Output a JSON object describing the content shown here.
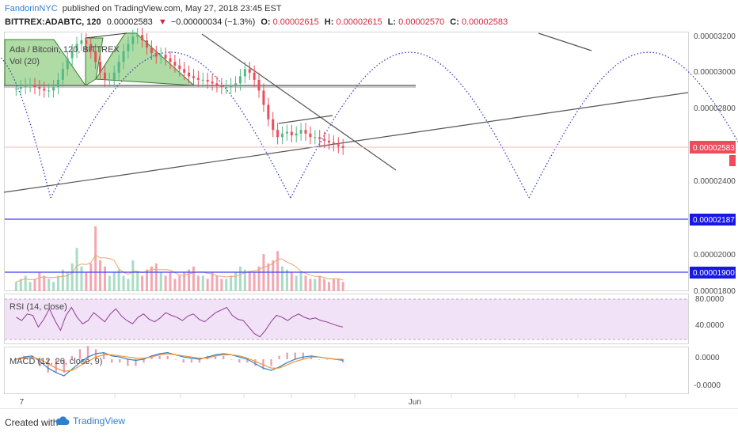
{
  "header": {
    "author": "FandorinNYC",
    "published": "published on TradingView.com, May 27, 2018 23:45 EST",
    "symbol": "BITTREX:ADABTC, 120",
    "last": "0.00002583",
    "change": "−0.00000034 (−1.3%)",
    "o_label": "O:",
    "o_val": "0.00002615",
    "h_label": "H:",
    "h_val": "0.00002615",
    "l_label": "L:",
    "l_val": "0.00002570",
    "c_label": "C:",
    "c_val": "0.00002583"
  },
  "legend": {
    "series": "Ada / Bitcoin, 120, BITTREX",
    "volume": "Vol (20)",
    "rsi": "RSI (14, close)",
    "macd": "MACD (12, 26, close, 9)"
  },
  "price_axis": {
    "ticks": [
      "0.00003200",
      "0.00003000",
      "0.00002800",
      "0.00002400",
      "0.00002000",
      "0.00001800"
    ],
    "tick_values": [
      3.2e-05,
      3e-05,
      2.8e-05,
      2.4e-05,
      2e-05,
      1.8e-05
    ],
    "last_price": "0.00002583",
    "level_1": "0.00002187",
    "level_2": "0.00001900"
  },
  "rsi_axis": {
    "ticks": [
      "80.0000",
      "40.0000"
    ],
    "tick_values": [
      80,
      40
    ]
  },
  "macd_axis": {
    "ticks": [
      "0.0000",
      "-0.0000"
    ]
  },
  "time_axis": {
    "ticks": [
      "7",
      "Jun"
    ]
  },
  "footer": {
    "created": "Created with",
    "brand": "TradingView"
  },
  "colors": {
    "up": "#53b987",
    "down": "#eb4d5c",
    "fill_green": "#6dbd5b",
    "blue_line": "#3e3ef0",
    "dots": "#3a3fc9",
    "rsi": "#8e3d91",
    "rsi_band": "#f1e2f8",
    "macd": "#2f83c8",
    "signal": "#f39235",
    "hist": "#e9a0b0",
    "accent": "#2f7fd1"
  },
  "chart_data": {
    "type": "candlestick",
    "title": "",
    "y_scale": "linear",
    "ylim": [
      1.78e-05,
      3.22e-05
    ],
    "x_range": [
      0,
      120
    ],
    "x_ticks": {
      "7": 3,
      "Jun": 72
    },
    "ohlc_close": [
      2.91e-05,
      2.92e-05,
      2.93e-05,
      2.93e-05,
      2.92e-05,
      2.91e-05,
      2.9e-05,
      2.9e-05,
      2.92e-05,
      2.96e-05,
      3.02e-05,
      3.08e-05,
      3.12e-05,
      3.16e-05,
      3.18e-05,
      3.16e-05,
      3.12e-05,
      3.06e-05,
      3e-05,
      2.96e-05,
      2.96e-05,
      3e-05,
      3.06e-05,
      3.12e-05,
      3.16e-05,
      3.2e-05,
      3.21e-05,
      3.18e-05,
      3.14e-05,
      3.11e-05,
      3.09e-05,
      3.1e-05,
      3.08e-05,
      3.06e-05,
      3.04e-05,
      3.02e-05,
      3e-05,
      2.98e-05,
      2.97e-05,
      2.96e-05,
      2.96e-05,
      2.95e-05,
      2.94e-05,
      2.93e-05,
      2.92e-05,
      2.92e-05,
      2.93e-05,
      2.94e-05,
      2.98e-05,
      3.02e-05,
      3e-05,
      2.96e-05,
      2.9e-05,
      2.82e-05,
      2.74e-05,
      2.68e-05,
      2.64e-05,
      2.66e-05,
      2.67e-05,
      2.65e-05,
      2.66e-05,
      2.68e-05,
      2.66e-05,
      2.64e-05,
      2.64e-05,
      2.63e-05,
      2.62e-05,
      2.61e-05,
      2.6e-05,
      2.59e-05,
      2.58e-05
    ],
    "volume": [
      3,
      4,
      5,
      3,
      4,
      6,
      5,
      4,
      3,
      5,
      7,
      6,
      9,
      14,
      8,
      6,
      9,
      21,
      10,
      8,
      5,
      6,
      7,
      5,
      4,
      10,
      6,
      5,
      7,
      8,
      9,
      6,
      5,
      6,
      4,
      5,
      6,
      7,
      8,
      5,
      5,
      4,
      6,
      5,
      4,
      4,
      5,
      6,
      8,
      7,
      6,
      6,
      8,
      12,
      9,
      10,
      13,
      8,
      7,
      6,
      5,
      6,
      5,
      4,
      4,
      5,
      4,
      3,
      4,
      4,
      3
    ],
    "volume_scale": "relative",
    "rsi": [
      55,
      50,
      60,
      58,
      40,
      52,
      68,
      50,
      35,
      58,
      70,
      55,
      45,
      50,
      62,
      55,
      48,
      60,
      68,
      57,
      50,
      45,
      55,
      60,
      52,
      48,
      54,
      62,
      58,
      55,
      50,
      57,
      60,
      52,
      48,
      55,
      62,
      66,
      70,
      58,
      52,
      50,
      40,
      30,
      25,
      35,
      48,
      58,
      55,
      50,
      56,
      60,
      55,
      52,
      54,
      50,
      48,
      45,
      42,
      40
    ],
    "rsi_ylim": [
      15,
      90
    ],
    "rsi_bands": [
      70,
      30
    ],
    "macd": [
      0,
      0.2,
      0.3,
      -0.2,
      -0.8,
      -1.2,
      -1.5,
      -0.9,
      -0.3,
      0.2,
      0.5,
      0.6,
      0.3,
      0.2,
      0.0,
      -0.1,
      0.0,
      0.3,
      0.5,
      0.6,
      0.4,
      0.2,
      0.1,
      0.0,
      0.2,
      0.4,
      0.5,
      0.4,
      0.2,
      0.0,
      -0.4,
      -0.8,
      -1.0,
      -0.7,
      -0.3,
      0.0,
      0.2,
      0.3,
      0.2,
      0.1,
      0.0,
      -0.1
    ],
    "signal": [
      0,
      0.1,
      0.2,
      0.0,
      -0.4,
      -0.8,
      -1.1,
      -1.0,
      -0.6,
      -0.2,
      0.2,
      0.4,
      0.4,
      0.3,
      0.2,
      0.1,
      0.1,
      0.2,
      0.4,
      0.5,
      0.4,
      0.3,
      0.2,
      0.1,
      0.1,
      0.3,
      0.4,
      0.4,
      0.3,
      0.1,
      -0.2,
      -0.5,
      -0.8,
      -0.8,
      -0.5,
      -0.2,
      0.0,
      0.2,
      0.2,
      0.1,
      0.0,
      0.0
    ],
    "macd_scale": "relative"
  }
}
